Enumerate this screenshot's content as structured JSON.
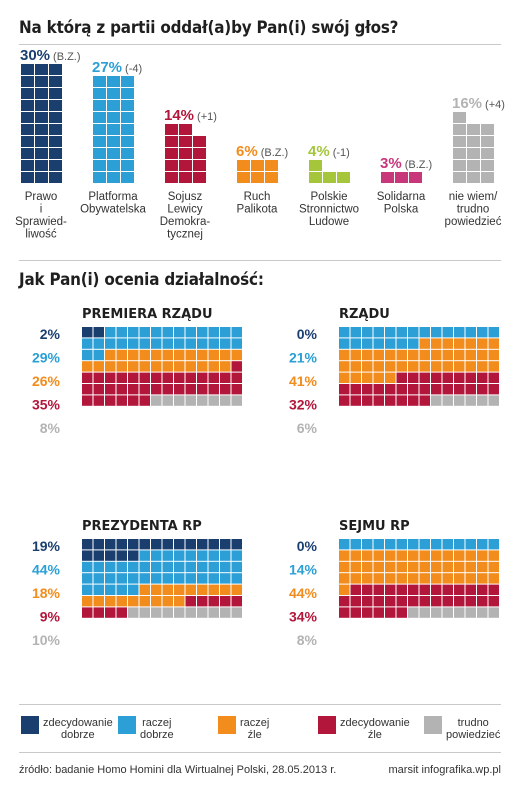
{
  "title": "Na którą z partii oddał(a)by Pan(i) swój głos?",
  "subtitle": "Jak Pan(i) ocenia działalność:",
  "source": "źródło: badanie Homo Homini dla Wirtualnej Polski, 28.05.2013 r.",
  "credit": "marsit infografika.wp.pl",
  "colors": {
    "pis": "#1a3f6f",
    "po": "#2b9fd6",
    "sld": "#b3163b",
    "rp": "#f28c1d",
    "psl": "#a5c63b",
    "sp": "#c8377a",
    "undecided": "#b3b3b3",
    "ratings": [
      "#1a3f6f",
      "#2b9fd6",
      "#f28c1d",
      "#b3163b",
      "#b3b3b3"
    ]
  },
  "chart_data": [
    {
      "type": "bar",
      "categories": [
        "Prawo i Sprawiedliwość",
        "Platforma Obywatelska",
        "Sojusz Lewicy Demokratycznej",
        "Ruch Palikota",
        "Polskie Stronnictwo Ludowe",
        "Solidarna Polska",
        "nie wiem/ trudno powiedzieć"
      ],
      "category_labels": [
        [
          "Prawo",
          "i",
          "Sprawied-",
          "liwość"
        ],
        [
          "Platforma",
          "Obywatelska"
        ],
        [
          "Sojusz",
          "Lewicy",
          "Demokra-",
          "tycznej"
        ],
        [
          "Ruch",
          "Palikota"
        ],
        [
          "Polskie",
          "Stronnictwo",
          "Ludowe"
        ],
        [
          "Solidarna",
          "Polska"
        ],
        [
          "nie wiem/",
          "trudno",
          "powiedzieć"
        ]
      ],
      "values": [
        30,
        27,
        14,
        6,
        4,
        3,
        16
      ],
      "value_labels": [
        "30%",
        "27%",
        "14%",
        "6%",
        "4%",
        "3%",
        "16%"
      ],
      "change_labels": [
        "(B.Z.)",
        "(-4)",
        "(+1)",
        "(B.Z.)",
        "(-1)",
        "(B.Z.)",
        "(+4)"
      ],
      "color_keys": [
        "pis",
        "po",
        "sld",
        "rp",
        "psl",
        "sp",
        "undecided"
      ],
      "ylim": [
        0,
        30
      ]
    },
    {
      "type": "waffle",
      "title": "PREMIERA RZĄDU",
      "categories": [
        "zdecydowanie dobrze",
        "raczej dobrze",
        "raczej źle",
        "zdecydowanie źle",
        "trudno powiedzieć"
      ],
      "values": [
        2,
        29,
        26,
        35,
        8
      ],
      "value_labels": [
        "2%",
        "29%",
        "26%",
        "35%",
        "8%"
      ]
    },
    {
      "type": "waffle",
      "title": "RZĄDU",
      "categories": [
        "zdecydowanie dobrze",
        "raczej dobrze",
        "raczej źle",
        "zdecydowanie źle",
        "trudno powiedzieć"
      ],
      "values": [
        0,
        21,
        41,
        32,
        6
      ],
      "value_labels": [
        "0%",
        "21%",
        "41%",
        "32%",
        "6%"
      ]
    },
    {
      "type": "waffle",
      "title": "PREZYDENTA RP",
      "categories": [
        "zdecydowanie dobrze",
        "raczej dobrze",
        "raczej źle",
        "zdecydowanie źle",
        "trudno powiedzieć"
      ],
      "values": [
        19,
        44,
        18,
        9,
        10
      ],
      "value_labels": [
        "19%",
        "44%",
        "18%",
        "9%",
        "10%"
      ]
    },
    {
      "type": "waffle",
      "title": "SEJMU RP",
      "categories": [
        "zdecydowanie dobrze",
        "raczej dobrze",
        "raczej źle",
        "zdecydowanie źle",
        "trudno powiedzieć"
      ],
      "values": [
        0,
        14,
        44,
        34,
        8
      ],
      "value_labels": [
        "0%",
        "14%",
        "44%",
        "34%",
        "8%"
      ]
    }
  ],
  "legend": [
    {
      "lines": [
        "zdecydowanie",
        "dobrze"
      ]
    },
    {
      "lines": [
        "raczej",
        "dobrze"
      ]
    },
    {
      "lines": [
        "raczej",
        "źle"
      ]
    },
    {
      "lines": [
        "zdecydowanie",
        "źle"
      ]
    },
    {
      "lines": [
        "trudno",
        "powiedzieć"
      ]
    }
  ]
}
